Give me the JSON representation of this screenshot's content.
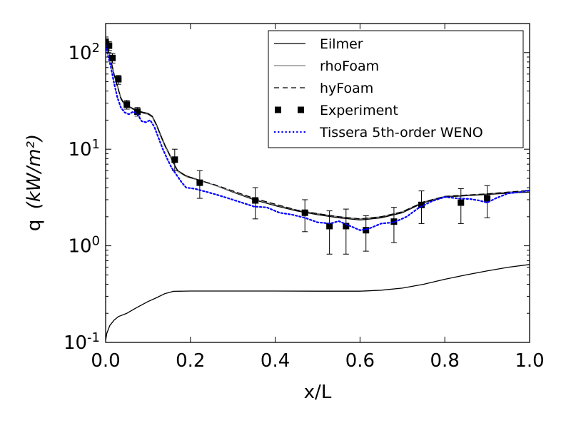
{
  "chart_data": {
    "type": "line",
    "xlabel": "x/L",
    "ylabel": "q",
    "ylabel_unit": "(kW/m²)",
    "xlim": [
      0.0,
      1.0
    ],
    "ylim": [
      0.1,
      200
    ],
    "yscale": "log",
    "grid": false,
    "legend_position": "top-right",
    "x_ticks": [
      {
        "value": 0.0,
        "label": "0.0"
      },
      {
        "value": 0.2,
        "label": "0.2"
      },
      {
        "value": 0.4,
        "label": "0.4"
      },
      {
        "value": 0.6,
        "label": "0.6"
      },
      {
        "value": 0.8,
        "label": "0.8"
      },
      {
        "value": 1.0,
        "label": "1.0"
      }
    ],
    "y_ticks": [
      {
        "value": 0.1,
        "base": "10",
        "exp": "-1"
      },
      {
        "value": 1,
        "base": "10",
        "exp": "0"
      },
      {
        "value": 10,
        "base": "10",
        "exp": "1"
      },
      {
        "value": 100,
        "base": "10",
        "exp": "2"
      }
    ],
    "series": [
      {
        "name": "Eilmer",
        "kind": "line",
        "color": "#000000",
        "dash": "solid",
        "points": [
          [
            0.0,
            140
          ],
          [
            0.005,
            110
          ],
          [
            0.012,
            85
          ],
          [
            0.02,
            60
          ],
          [
            0.028,
            45
          ],
          [
            0.036,
            34
          ],
          [
            0.045,
            29
          ],
          [
            0.06,
            27
          ],
          [
            0.075,
            25
          ],
          [
            0.09,
            24
          ],
          [
            0.1,
            23.5
          ],
          [
            0.11,
            22
          ],
          [
            0.12,
            18
          ],
          [
            0.13,
            14
          ],
          [
            0.14,
            11
          ],
          [
            0.15,
            9
          ],
          [
            0.16,
            7.2
          ],
          [
            0.17,
            6
          ],
          [
            0.19,
            5.3
          ],
          [
            0.22,
            4.8
          ],
          [
            0.26,
            4.2
          ],
          [
            0.3,
            3.6
          ],
          [
            0.35,
            3.0
          ],
          [
            0.4,
            2.6
          ],
          [
            0.45,
            2.3
          ],
          [
            0.5,
            2.1
          ],
          [
            0.55,
            1.95
          ],
          [
            0.6,
            1.85
          ],
          [
            0.65,
            1.95
          ],
          [
            0.7,
            2.2
          ],
          [
            0.75,
            2.8
          ],
          [
            0.8,
            3.2
          ],
          [
            0.85,
            3.3
          ],
          [
            0.9,
            3.4
          ],
          [
            0.95,
            3.5
          ],
          [
            1.0,
            3.6
          ]
        ]
      },
      {
        "name": "rhoFoam",
        "kind": "line",
        "color": "#808080",
        "dash": "solid",
        "points": [
          [
            0.0,
            135
          ],
          [
            0.005,
            108
          ],
          [
            0.012,
            83
          ],
          [
            0.02,
            58
          ],
          [
            0.028,
            44
          ],
          [
            0.036,
            33
          ],
          [
            0.045,
            28.5
          ],
          [
            0.06,
            26.5
          ],
          [
            0.075,
            24.5
          ],
          [
            0.09,
            23.5
          ],
          [
            0.1,
            23
          ],
          [
            0.11,
            21.5
          ],
          [
            0.12,
            17.5
          ],
          [
            0.13,
            13.5
          ],
          [
            0.14,
            10.7
          ],
          [
            0.15,
            8.8
          ],
          [
            0.16,
            7.1
          ],
          [
            0.17,
            5.9
          ],
          [
            0.19,
            5.2
          ],
          [
            0.22,
            4.75
          ],
          [
            0.26,
            4.2
          ],
          [
            0.3,
            3.65
          ],
          [
            0.35,
            3.05
          ],
          [
            0.4,
            2.65
          ],
          [
            0.45,
            2.35
          ],
          [
            0.5,
            2.15
          ],
          [
            0.55,
            2.0
          ],
          [
            0.6,
            1.9
          ],
          [
            0.65,
            2.0
          ],
          [
            0.7,
            2.25
          ],
          [
            0.75,
            2.85
          ],
          [
            0.8,
            3.25
          ],
          [
            0.85,
            3.35
          ],
          [
            0.9,
            3.45
          ],
          [
            0.95,
            3.6
          ],
          [
            1.0,
            3.7
          ]
        ]
      },
      {
        "name": "hyFoam",
        "kind": "line",
        "color": "#000000",
        "dash": "dashed",
        "points": [
          [
            0.0,
            138
          ],
          [
            0.005,
            109
          ],
          [
            0.012,
            84
          ],
          [
            0.02,
            59
          ],
          [
            0.028,
            44.5
          ],
          [
            0.036,
            33.5
          ],
          [
            0.045,
            28.8
          ],
          [
            0.06,
            26.8
          ],
          [
            0.075,
            24.8
          ],
          [
            0.09,
            23.8
          ],
          [
            0.1,
            23.2
          ],
          [
            0.11,
            21.8
          ],
          [
            0.12,
            17.8
          ],
          [
            0.13,
            13.8
          ],
          [
            0.14,
            10.9
          ],
          [
            0.15,
            8.9
          ],
          [
            0.16,
            7.15
          ],
          [
            0.17,
            6.0
          ],
          [
            0.19,
            5.25
          ],
          [
            0.22,
            4.8
          ],
          [
            0.26,
            4.25
          ],
          [
            0.3,
            3.7
          ],
          [
            0.35,
            3.1
          ],
          [
            0.4,
            2.7
          ],
          [
            0.45,
            2.35
          ],
          [
            0.5,
            2.15
          ],
          [
            0.55,
            2.0
          ],
          [
            0.6,
            1.9
          ],
          [
            0.65,
            2.0
          ],
          [
            0.7,
            2.25
          ],
          [
            0.75,
            2.85
          ],
          [
            0.8,
            3.25
          ],
          [
            0.85,
            3.35
          ],
          [
            0.9,
            3.45
          ],
          [
            0.95,
            3.6
          ],
          [
            1.0,
            3.75
          ]
        ]
      },
      {
        "name": "Experiment",
        "kind": "errorbar",
        "color": "#000000",
        "points": [
          {
            "x": 0.0,
            "y": 130,
            "lo": 118,
            "hi": 145
          },
          {
            "x": 0.008,
            "y": 118,
            "lo": 105,
            "hi": 130
          },
          {
            "x": 0.016,
            "y": 88,
            "lo": 78,
            "hi": 98
          },
          {
            "x": 0.03,
            "y": 53,
            "lo": 47,
            "hi": 58
          },
          {
            "x": 0.05,
            "y": 29,
            "lo": 26,
            "hi": 32
          },
          {
            "x": 0.075,
            "y": 24.5,
            "lo": 22,
            "hi": 27
          },
          {
            "x": 0.163,
            "y": 7.8,
            "lo": 6.0,
            "hi": 10
          },
          {
            "x": 0.222,
            "y": 4.5,
            "lo": 3.1,
            "hi": 6.0
          },
          {
            "x": 0.353,
            "y": 2.95,
            "lo": 1.9,
            "hi": 4.0
          },
          {
            "x": 0.47,
            "y": 2.2,
            "lo": 1.4,
            "hi": 3.0
          },
          {
            "x": 0.528,
            "y": 1.6,
            "lo": 0.82,
            "hi": 2.3
          },
          {
            "x": 0.567,
            "y": 1.6,
            "lo": 0.82,
            "hi": 2.4
          },
          {
            "x": 0.614,
            "y": 1.45,
            "lo": 0.88,
            "hi": 2.05
          },
          {
            "x": 0.68,
            "y": 1.78,
            "lo": 1.08,
            "hi": 2.5
          },
          {
            "x": 0.745,
            "y": 2.65,
            "lo": 1.7,
            "hi": 3.7
          },
          {
            "x": 0.838,
            "y": 2.8,
            "lo": 1.7,
            "hi": 3.9
          },
          {
            "x": 0.9,
            "y": 3.1,
            "lo": 1.95,
            "hi": 4.2
          }
        ]
      },
      {
        "name": "Tissera 5th-order WENO",
        "kind": "line",
        "color": "#0000ff",
        "dash": "dotted",
        "points": [
          [
            0.0,
            120
          ],
          [
            0.005,
            95
          ],
          [
            0.012,
            72
          ],
          [
            0.02,
            48
          ],
          [
            0.028,
            34
          ],
          [
            0.036,
            27
          ],
          [
            0.045,
            24
          ],
          [
            0.055,
            23
          ],
          [
            0.065,
            24.5
          ],
          [
            0.075,
            23
          ],
          [
            0.085,
            19.5
          ],
          [
            0.095,
            19
          ],
          [
            0.105,
            20
          ],
          [
            0.115,
            17
          ],
          [
            0.125,
            13
          ],
          [
            0.135,
            10
          ],
          [
            0.145,
            8
          ],
          [
            0.155,
            6.5
          ],
          [
            0.165,
            5.6
          ],
          [
            0.18,
            4.5
          ],
          [
            0.19,
            4.0
          ],
          [
            0.21,
            3.9
          ],
          [
            0.24,
            3.6
          ],
          [
            0.27,
            3.3
          ],
          [
            0.3,
            3.0
          ],
          [
            0.35,
            2.55
          ],
          [
            0.38,
            2.5
          ],
          [
            0.41,
            2.2
          ],
          [
            0.44,
            2.1
          ],
          [
            0.47,
            1.95
          ],
          [
            0.5,
            1.75
          ],
          [
            0.53,
            1.7
          ],
          [
            0.55,
            1.8
          ],
          [
            0.57,
            1.65
          ],
          [
            0.6,
            1.45
          ],
          [
            0.62,
            1.5
          ],
          [
            0.65,
            1.7
          ],
          [
            0.68,
            1.75
          ],
          [
            0.71,
            2.0
          ],
          [
            0.74,
            2.5
          ],
          [
            0.77,
            2.9
          ],
          [
            0.8,
            3.2
          ],
          [
            0.83,
            3.1
          ],
          [
            0.86,
            3.05
          ],
          [
            0.88,
            2.95
          ],
          [
            0.9,
            2.8
          ],
          [
            0.92,
            3.1
          ],
          [
            0.95,
            3.5
          ],
          [
            0.98,
            3.6
          ],
          [
            1.0,
            3.75
          ]
        ]
      },
      {
        "name": "",
        "kind": "line",
        "color": "#000000",
        "dash": "solid",
        "points": [
          [
            0.0,
            0.105
          ],
          [
            0.003,
            0.125
          ],
          [
            0.01,
            0.15
          ],
          [
            0.02,
            0.17
          ],
          [
            0.03,
            0.185
          ],
          [
            0.05,
            0.2
          ],
          [
            0.07,
            0.225
          ],
          [
            0.1,
            0.265
          ],
          [
            0.12,
            0.29
          ],
          [
            0.14,
            0.32
          ],
          [
            0.16,
            0.338
          ],
          [
            0.2,
            0.34
          ],
          [
            0.3,
            0.34
          ],
          [
            0.4,
            0.34
          ],
          [
            0.5,
            0.339
          ],
          [
            0.6,
            0.339
          ],
          [
            0.62,
            0.342
          ],
          [
            0.65,
            0.347
          ],
          [
            0.7,
            0.365
          ],
          [
            0.75,
            0.4
          ],
          [
            0.8,
            0.45
          ],
          [
            0.85,
            0.5
          ],
          [
            0.9,
            0.55
          ],
          [
            0.95,
            0.6
          ],
          [
            1.0,
            0.64
          ]
        ]
      }
    ]
  }
}
